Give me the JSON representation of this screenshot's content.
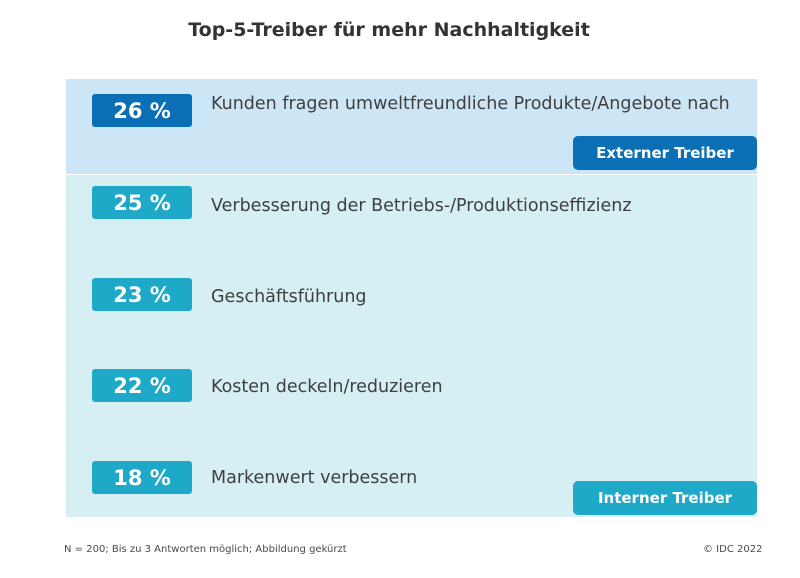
{
  "chart_data": {
    "type": "bar",
    "title": "Top-5-Treiber für mehr Nachhaltigkeit",
    "categories": [
      "Kunden fragen umweltfreundliche Produkte/Angebote nach",
      "Verbesserung der Betriebs-/Produktionseffizienz",
      "Geschäftsführung",
      "Kosten deckeln/reduzieren",
      "Markenwert verbessern"
    ],
    "values": [
      26,
      25,
      23,
      22,
      18
    ],
    "value_labels": [
      "26 %",
      "25 %",
      "23 %",
      "22 %",
      "18 %"
    ],
    "groups": [
      {
        "label": "Externer Treiber",
        "color": "#0a6fb5",
        "items": [
          0
        ]
      },
      {
        "label": "Interner Treiber",
        "color": "#1fa9c9",
        "items": [
          1,
          2,
          3,
          4
        ]
      }
    ],
    "footnote": "N = 200; Bis zu 3 Antworten möglich; Abbildung gekürzt",
    "source": "© IDC 2022"
  },
  "colors": {
    "external_badge": "#0a6fb5",
    "internal_badge": "#1fa9c9",
    "external_panel": "#cde6f5",
    "internal_panel": "#d5eff3"
  }
}
